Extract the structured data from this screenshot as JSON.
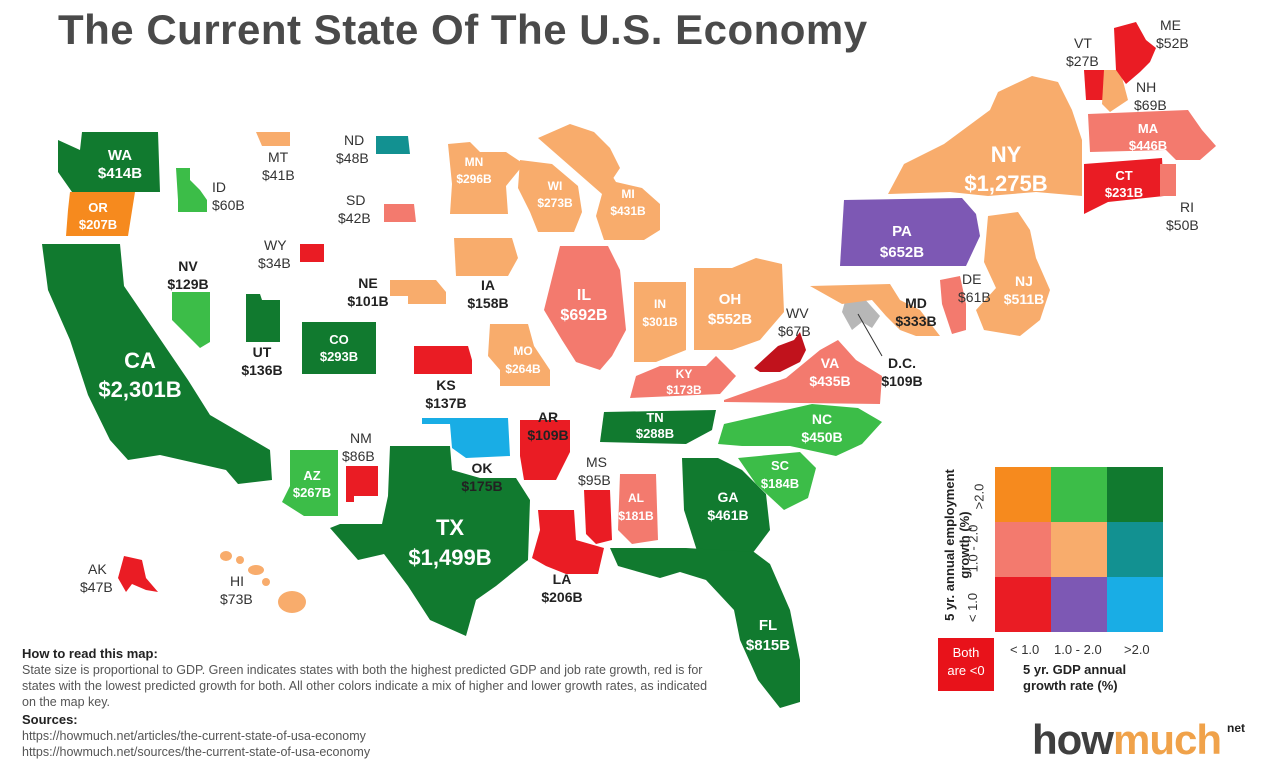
{
  "title": "The Current State Of The U.S. Economy",
  "colors": {
    "dark_green": "#117a2f",
    "light_green": "#3cbd48",
    "orange": "#f68a1e",
    "light_orange": "#f8ac6c",
    "salmon": "#f37a6e",
    "red": "#ea1c24",
    "dark_red": "#c1121c",
    "purple": "#7d58b4",
    "teal": "#129191",
    "blue": "#19ade5",
    "gray": "#b7b7b7"
  },
  "states": {
    "WA": {
      "abbr": "WA",
      "gdp": "$414B",
      "color": "#117a2f"
    },
    "OR": {
      "abbr": "OR",
      "gdp": "$207B",
      "color": "#f68a1e"
    },
    "CA": {
      "abbr": "CA",
      "gdp": "$2,301B",
      "color": "#117a2f"
    },
    "ID": {
      "abbr": "ID",
      "gdp": "$60B",
      "color": "#3cbd48"
    },
    "MT": {
      "abbr": "MT",
      "gdp": "$41B",
      "color": "#f8ac6c"
    },
    "ND": {
      "abbr": "ND",
      "gdp": "$48B",
      "color": "#129191"
    },
    "SD": {
      "abbr": "SD",
      "gdp": "$42B",
      "color": "#f37a6e"
    },
    "WY": {
      "abbr": "WY",
      "gdp": "$34B",
      "color": "#ea1c24"
    },
    "NV": {
      "abbr": "NV",
      "gdp": "$129B",
      "color": "#3cbd48"
    },
    "UT": {
      "abbr": "UT",
      "gdp": "$136B",
      "color": "#117a2f"
    },
    "CO": {
      "abbr": "CO",
      "gdp": "$293B",
      "color": "#117a2f"
    },
    "NE": {
      "abbr": "NE",
      "gdp": "$101B",
      "color": "#f8ac6c"
    },
    "KS": {
      "abbr": "KS",
      "gdp": "$137B",
      "color": "#ea1c24"
    },
    "AZ": {
      "abbr": "AZ",
      "gdp": "$267B",
      "color": "#3cbd48"
    },
    "NM": {
      "abbr": "NM",
      "gdp": "$86B",
      "color": "#ea1c24"
    },
    "OK": {
      "abbr": "OK",
      "gdp": "$175B",
      "color": "#19ade5"
    },
    "TX": {
      "abbr": "TX",
      "gdp": "$1,499B",
      "color": "#117a2f"
    },
    "MN": {
      "abbr": "MN",
      "gdp": "$296B",
      "color": "#f8ac6c"
    },
    "IA": {
      "abbr": "IA",
      "gdp": "$158B",
      "color": "#f8ac6c"
    },
    "MO": {
      "abbr": "MO",
      "gdp": "$264B",
      "color": "#f8ac6c"
    },
    "AR": {
      "abbr": "AR",
      "gdp": "$109B",
      "color": "#ea1c24"
    },
    "LA": {
      "abbr": "LA",
      "gdp": "$206B",
      "color": "#ea1c24"
    },
    "WI": {
      "abbr": "WI",
      "gdp": "$273B",
      "color": "#f8ac6c"
    },
    "IL": {
      "abbr": "IL",
      "gdp": "$692B",
      "color": "#f37a6e"
    },
    "MI": {
      "abbr": "MI",
      "gdp": "$431B",
      "color": "#f8ac6c"
    },
    "IN": {
      "abbr": "IN",
      "gdp": "$301B",
      "color": "#f8ac6c"
    },
    "OH": {
      "abbr": "OH",
      "gdp": "$552B",
      "color": "#f8ac6c"
    },
    "KY": {
      "abbr": "KY",
      "gdp": "$173B",
      "color": "#f37a6e"
    },
    "TN": {
      "abbr": "TN",
      "gdp": "$288B",
      "color": "#117a2f"
    },
    "MS": {
      "abbr": "MS",
      "gdp": "$95B",
      "color": "#ea1c24"
    },
    "AL": {
      "abbr": "AL",
      "gdp": "$181B",
      "color": "#f37a6e"
    },
    "GA": {
      "abbr": "GA",
      "gdp": "$461B",
      "color": "#117a2f"
    },
    "FL": {
      "abbr": "FL",
      "gdp": "$815B",
      "color": "#117a2f"
    },
    "SC": {
      "abbr": "SC",
      "gdp": "$184B",
      "color": "#3cbd48"
    },
    "NC": {
      "abbr": "NC",
      "gdp": "$450B",
      "color": "#3cbd48"
    },
    "VA": {
      "abbr": "VA",
      "gdp": "$435B",
      "color": "#f37a6e"
    },
    "WV": {
      "abbr": "WV",
      "gdp": "$67B",
      "color": "#c1121c"
    },
    "DC": {
      "abbr": "D.C.",
      "gdp": "$109B",
      "color": "#b7b7b7"
    },
    "MD": {
      "abbr": "MD",
      "gdp": "$333B",
      "color": "#f8ac6c"
    },
    "DE": {
      "abbr": "DE",
      "gdp": "$61B",
      "color": "#f37a6e"
    },
    "PA": {
      "abbr": "PA",
      "gdp": "$652B",
      "color": "#7d58b4"
    },
    "NJ": {
      "abbr": "NJ",
      "gdp": "$511B",
      "color": "#f8ac6c"
    },
    "NY": {
      "abbr": "NY",
      "gdp": "$1,275B",
      "color": "#f8ac6c"
    },
    "CT": {
      "abbr": "CT",
      "gdp": "$231B",
      "color": "#ea1c24"
    },
    "RI": {
      "abbr": "RI",
      "gdp": "$50B",
      "color": "#f37a6e"
    },
    "MA": {
      "abbr": "MA",
      "gdp": "$446B",
      "color": "#f37a6e"
    },
    "VT": {
      "abbr": "VT",
      "gdp": "$27B",
      "color": "#ea1c24"
    },
    "NH": {
      "abbr": "NH",
      "gdp": "$69B",
      "color": "#f8ac6c"
    },
    "ME": {
      "abbr": "ME",
      "gdp": "$52B",
      "color": "#ea1c24"
    },
    "AK": {
      "abbr": "AK",
      "gdp": "$47B",
      "color": "#ea1c24"
    },
    "HI": {
      "abbr": "HI",
      "gdp": "$73B",
      "color": "#f8ac6c"
    }
  },
  "legend": {
    "y_title_line1": "5 yr. annual employment",
    "y_title_line2": "growth (%)",
    "y_ticks": [
      "< 1.0",
      "1.0 - 2.0",
      ">2.0"
    ],
    "x_ticks": [
      "< 1.0",
      "1.0 - 2.0",
      ">2.0"
    ],
    "x_title_line1": "5 yr. GDP annual",
    "x_title_line2": "growth rate (%)",
    "both_line1": "Both",
    "both_line2": "are <0",
    "grid_rows": [
      [
        "#f68a1e",
        "#3cbd48",
        "#117a2f"
      ],
      [
        "#f37a6e",
        "#f8ac6c",
        "#129191"
      ],
      [
        "#ea1c24",
        "#7d58b4",
        "#19ade5"
      ]
    ],
    "both_color": "#e8121a"
  },
  "howto": {
    "heading": "How to read this map:",
    "text": "State size is proportional to GDP. Green indicates states with both the highest predicted GDP and job rate growth, red is for states with the lowest predicted growth for both. All other colors indicate a mix of higher and lower growth rates, as indicated on the map key.",
    "sources_heading": "Sources:",
    "source1": "https://howmuch.net/articles/the-current-state-of-usa-economy",
    "source2": "https://howmuch.net/sources/the-current-state-of-usa-economy"
  },
  "logo": {
    "how": "how",
    "much": "much",
    "net": "net"
  }
}
